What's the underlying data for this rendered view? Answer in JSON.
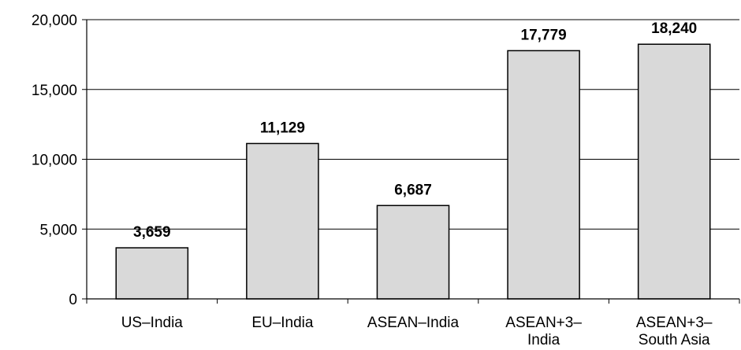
{
  "chart_data": {
    "type": "bar",
    "categories": [
      [
        "US–India"
      ],
      [
        "EU–India"
      ],
      [
        "ASEAN–India"
      ],
      [
        "ASEAN+3–",
        "India"
      ],
      [
        "ASEAN+3–",
        "South Asia"
      ]
    ],
    "values": [
      3659,
      11129,
      6687,
      17779,
      18240
    ],
    "data_labels": [
      "3,659",
      "11,129",
      "6,687",
      "17,779",
      "18,240"
    ],
    "ylim": [
      0,
      20000
    ],
    "yticks": [
      0,
      5000,
      10000,
      15000,
      20000
    ],
    "ytick_labels": [
      "0",
      "5,000",
      "10,000",
      "15,000",
      "20,000"
    ],
    "grid": "horizontal",
    "legend": "none",
    "colors": {
      "bar_fill": "#d9d9d9",
      "bar_stroke": "#000000",
      "grid": "#000000",
      "axis": "#000000"
    }
  }
}
